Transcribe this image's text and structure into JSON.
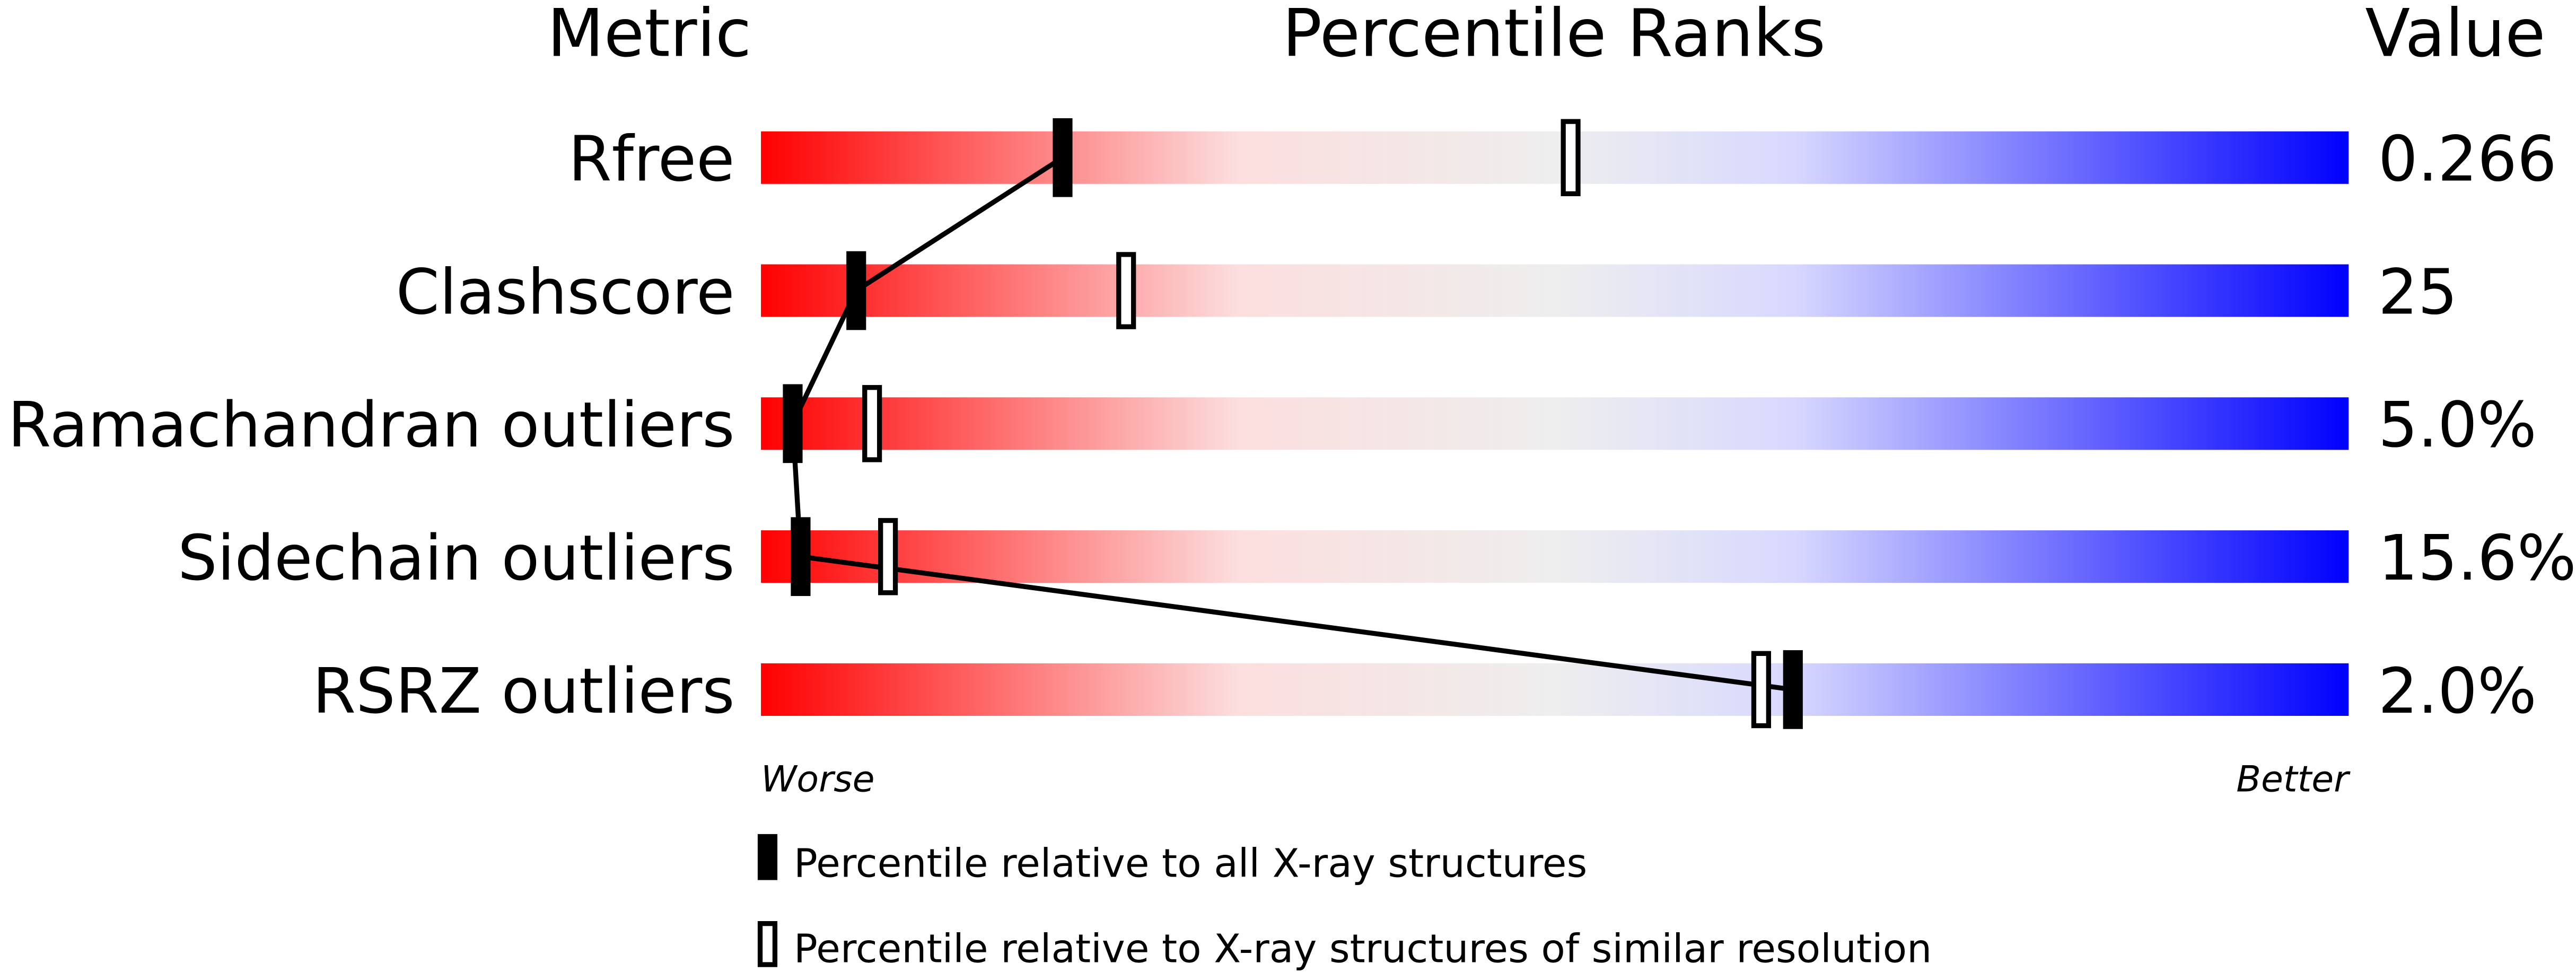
{
  "chart_data": {
    "type": "bar",
    "headers": {
      "metric": "Metric",
      "percentile": "Percentile Ranks",
      "value": "Value"
    },
    "xlim": [
      0,
      100
    ],
    "axis_labels": {
      "left": "Worse",
      "right": "Better"
    },
    "gradient_colors": [
      "#ff0000",
      "#fcdede",
      "#eeeeee",
      "#d8d8ff",
      "#0000ff"
    ],
    "rows": [
      {
        "metric": "Rfree",
        "value": "0.266",
        "percentile_all": 19,
        "percentile_similar": 51
      },
      {
        "metric": "Clashscore",
        "value": "25",
        "percentile_all": 6,
        "percentile_similar": 23
      },
      {
        "metric": "Ramachandran outliers",
        "value": "5.0%",
        "percentile_all": 2,
        "percentile_similar": 7
      },
      {
        "metric": "Sidechain outliers",
        "value": "15.6%",
        "percentile_all": 2.5,
        "percentile_similar": 8
      },
      {
        "metric": "RSRZ outliers",
        "value": "2.0%",
        "percentile_all": 65,
        "percentile_similar": 63
      }
    ],
    "legend": [
      {
        "marker": "filled",
        "label": "Percentile relative to all X-ray structures"
      },
      {
        "marker": "open",
        "label": "Percentile relative to X-ray structures of similar resolution"
      }
    ]
  }
}
